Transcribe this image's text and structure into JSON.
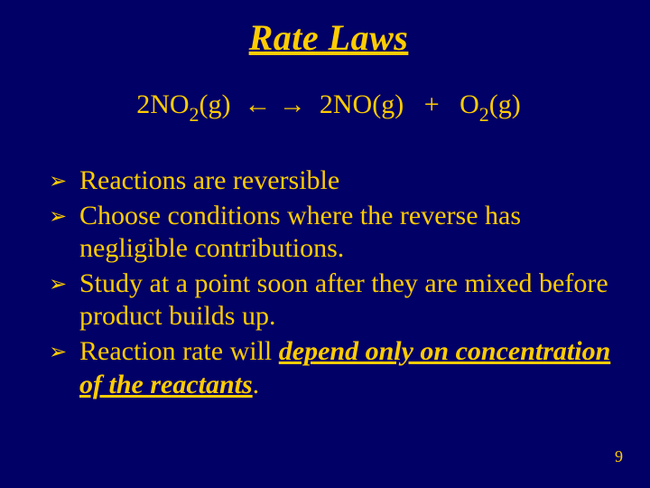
{
  "colors": {
    "background": "#000066",
    "text": "#ffcc00"
  },
  "typography": {
    "family": "Times New Roman",
    "title_fontsize": 40,
    "equation_fontsize": 30,
    "body_fontsize": 30,
    "pagenum_fontsize": 18
  },
  "title": "Rate Laws",
  "equation": {
    "lhs_coeff": "2",
    "lhs_species": "NO",
    "lhs_sub": "2",
    "lhs_phase": "(g)",
    "arrows": "← →",
    "rhs1_coeff": "2",
    "rhs1_species": "NO",
    "rhs1_phase": "(g)",
    "plus": "+",
    "rhs2_species": "O",
    "rhs2_sub": "2",
    "rhs2_phase": "(g)"
  },
  "bullet_marker": "➢",
  "bullets": {
    "b1": "Reactions are reversible",
    "b2": "Choose conditions where the reverse has negligible contributions.",
    "b3": "Study at a point soon after they are mixed before product builds up.",
    "b4_pre": "Reaction rate will ",
    "b4_emph": "depend only on concentration of the reactants",
    "b4_post": "."
  },
  "page_number": "9"
}
